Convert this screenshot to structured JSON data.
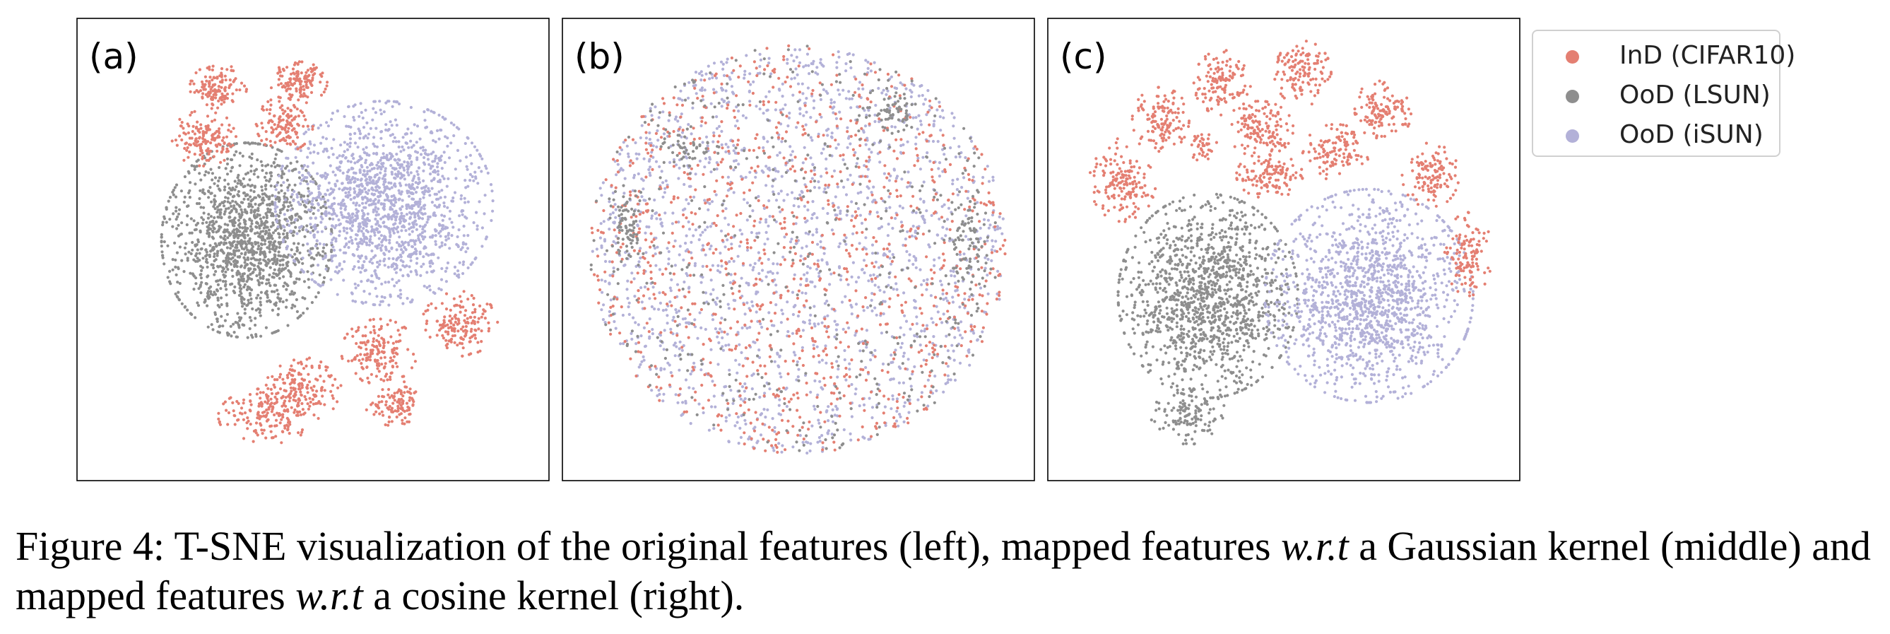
{
  "chart_data": [
    {
      "type": "scatter",
      "panel_label": "(a)",
      "clusters": [
        {
          "series": "OoD (LSUN)",
          "cx": 0.36,
          "cy": 0.48,
          "rx": 0.18,
          "ry": 0.21,
          "n": 1400,
          "shape": "blob"
        },
        {
          "series": "OoD (iSUN)",
          "cx": 0.65,
          "cy": 0.4,
          "rx": 0.23,
          "ry": 0.22,
          "n": 1500,
          "shape": "blob"
        },
        {
          "series": "InD (CIFAR10)",
          "cx": 0.3,
          "cy": 0.15,
          "rx": 0.06,
          "ry": 0.05,
          "n": 130,
          "shape": "blob"
        },
        {
          "series": "InD (CIFAR10)",
          "cx": 0.47,
          "cy": 0.14,
          "rx": 0.06,
          "ry": 0.045,
          "n": 130,
          "shape": "blob"
        },
        {
          "series": "InD (CIFAR10)",
          "cx": 0.27,
          "cy": 0.26,
          "rx": 0.07,
          "ry": 0.06,
          "n": 150,
          "shape": "blob"
        },
        {
          "series": "InD (CIFAR10)",
          "cx": 0.44,
          "cy": 0.23,
          "rx": 0.06,
          "ry": 0.06,
          "n": 130,
          "shape": "blob"
        },
        {
          "series": "InD (CIFAR10)",
          "cx": 0.81,
          "cy": 0.66,
          "rx": 0.08,
          "ry": 0.07,
          "n": 160,
          "shape": "blob"
        },
        {
          "series": "InD (CIFAR10)",
          "cx": 0.64,
          "cy": 0.72,
          "rx": 0.08,
          "ry": 0.07,
          "n": 160,
          "shape": "blob"
        },
        {
          "series": "InD (CIFAR10)",
          "cx": 0.48,
          "cy": 0.8,
          "rx": 0.08,
          "ry": 0.07,
          "n": 160,
          "shape": "blob"
        },
        {
          "series": "InD (CIFAR10)",
          "cx": 0.4,
          "cy": 0.86,
          "rx": 0.1,
          "ry": 0.06,
          "n": 160,
          "shape": "blob"
        },
        {
          "series": "InD (CIFAR10)",
          "cx": 0.67,
          "cy": 0.83,
          "rx": 0.06,
          "ry": 0.05,
          "n": 110,
          "shape": "blob"
        }
      ]
    },
    {
      "type": "scatter",
      "panel_label": "(b)",
      "clusters": [
        {
          "series": "OoD (iSUN)",
          "cx": 0.5,
          "cy": 0.5,
          "rx": 0.44,
          "ry": 0.44,
          "n": 1700,
          "shape": "disk"
        },
        {
          "series": "InD (CIFAR10)",
          "cx": 0.5,
          "cy": 0.5,
          "rx": 0.44,
          "ry": 0.44,
          "n": 1000,
          "shape": "disk"
        },
        {
          "series": "OoD (LSUN)",
          "cx": 0.5,
          "cy": 0.5,
          "rx": 0.44,
          "ry": 0.44,
          "n": 450,
          "shape": "disk"
        },
        {
          "series": "OoD (LSUN)",
          "cx": 0.14,
          "cy": 0.45,
          "rx": 0.04,
          "ry": 0.1,
          "n": 70,
          "shape": "blob"
        },
        {
          "series": "OoD (LSUN)",
          "cx": 0.86,
          "cy": 0.48,
          "rx": 0.04,
          "ry": 0.12,
          "n": 80,
          "shape": "blob"
        },
        {
          "series": "OoD (LSUN)",
          "cx": 0.7,
          "cy": 0.2,
          "rx": 0.05,
          "ry": 0.04,
          "n": 50,
          "shape": "blob"
        },
        {
          "series": "OoD (LSUN)",
          "cx": 0.26,
          "cy": 0.28,
          "rx": 0.05,
          "ry": 0.04,
          "n": 40,
          "shape": "blob"
        }
      ]
    },
    {
      "type": "scatter",
      "panel_label": "(c)",
      "clusters": [
        {
          "series": "OoD (LSUN)",
          "cx": 0.34,
          "cy": 0.6,
          "rx": 0.19,
          "ry": 0.22,
          "n": 1300,
          "shape": "blob"
        },
        {
          "series": "OoD (LSUN)",
          "cx": 0.3,
          "cy": 0.86,
          "rx": 0.08,
          "ry": 0.06,
          "n": 120,
          "shape": "blob"
        },
        {
          "series": "OoD (iSUN)",
          "cx": 0.68,
          "cy": 0.6,
          "rx": 0.22,
          "ry": 0.23,
          "n": 1400,
          "shape": "blob"
        },
        {
          "series": "InD (CIFAR10)",
          "cx": 0.16,
          "cy": 0.35,
          "rx": 0.07,
          "ry": 0.09,
          "n": 160,
          "shape": "blob"
        },
        {
          "series": "InD (CIFAR10)",
          "cx": 0.24,
          "cy": 0.22,
          "rx": 0.06,
          "ry": 0.07,
          "n": 130,
          "shape": "blob"
        },
        {
          "series": "InD (CIFAR10)",
          "cx": 0.37,
          "cy": 0.14,
          "rx": 0.06,
          "ry": 0.07,
          "n": 130,
          "shape": "blob"
        },
        {
          "series": "InD (CIFAR10)",
          "cx": 0.45,
          "cy": 0.24,
          "rx": 0.07,
          "ry": 0.06,
          "n": 140,
          "shape": "blob"
        },
        {
          "series": "InD (CIFAR10)",
          "cx": 0.54,
          "cy": 0.12,
          "rx": 0.06,
          "ry": 0.07,
          "n": 130,
          "shape": "blob"
        },
        {
          "series": "InD (CIFAR10)",
          "cx": 0.47,
          "cy": 0.34,
          "rx": 0.07,
          "ry": 0.05,
          "n": 120,
          "shape": "blob"
        },
        {
          "series": "InD (CIFAR10)",
          "cx": 0.61,
          "cy": 0.29,
          "rx": 0.07,
          "ry": 0.06,
          "n": 120,
          "shape": "blob"
        },
        {
          "series": "InD (CIFAR10)",
          "cx": 0.71,
          "cy": 0.2,
          "rx": 0.06,
          "ry": 0.07,
          "n": 130,
          "shape": "blob"
        },
        {
          "series": "InD (CIFAR10)",
          "cx": 0.81,
          "cy": 0.34,
          "rx": 0.06,
          "ry": 0.07,
          "n": 120,
          "shape": "blob"
        },
        {
          "series": "InD (CIFAR10)",
          "cx": 0.89,
          "cy": 0.51,
          "rx": 0.05,
          "ry": 0.09,
          "n": 120,
          "shape": "blob"
        },
        {
          "series": "InD (CIFAR10)",
          "cx": 0.33,
          "cy": 0.28,
          "rx": 0.03,
          "ry": 0.03,
          "n": 35,
          "shape": "blob"
        }
      ]
    }
  ],
  "legend": {
    "entries": [
      {
        "label": "InD (CIFAR10)",
        "color": "#e47f72"
      },
      {
        "label": "OoD (LSUN)",
        "color": "#8e8e8e"
      },
      {
        "label": "OoD (iSUN)",
        "color": "#b3b1d8"
      }
    ]
  },
  "caption": {
    "part1": "Figure 4: T-SNE visualization of the original features (left), mapped features ",
    "wrt1": "w.r.t",
    "part2": " a Gaussian kernel (middle) and mapped features ",
    "wrt2": "w.r.t",
    "part3": " a cosine kernel (right)."
  }
}
